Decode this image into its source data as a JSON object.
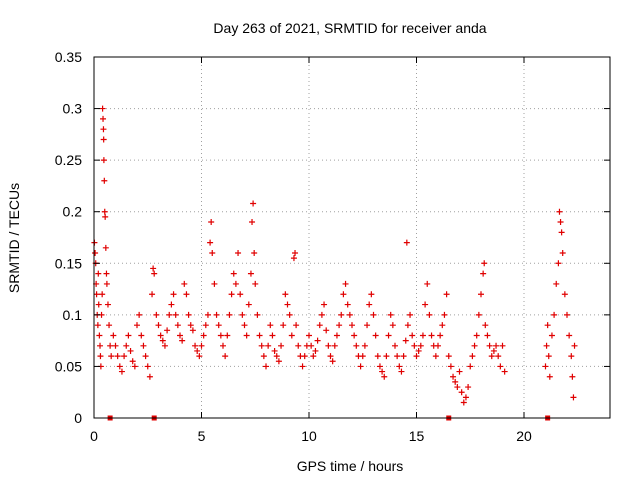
{
  "chart_data": {
    "type": "scatter",
    "title": "Day 263 of 2021, SRMTID for receiver anda",
    "xlabel": "GPS time / hours",
    "ylabel": "SRMTID / TECUs",
    "xlim": [
      0,
      24
    ],
    "ylim": [
      0,
      0.35
    ],
    "x_ticks": [
      0,
      5,
      10,
      15,
      20
    ],
    "y_ticks": [
      0,
      0.05,
      0.1,
      0.15,
      0.2,
      0.25,
      0.3,
      0.35
    ],
    "x_tick_labels": [
      "0",
      "5",
      "10",
      "15",
      "20"
    ],
    "y_tick_labels": [
      "0",
      "0.05",
      "0.1",
      "0.15",
      "0.2",
      "0.25",
      "0.3",
      "0.35"
    ],
    "grid": true,
    "marker": "+",
    "series_color": "#e00000",
    "data_gap_markers_x": [
      0.75,
      2.8,
      16.5,
      21.1
    ],
    "series": [
      {
        "name": "SRMTID",
        "points": [
          [
            0.02,
            0.17
          ],
          [
            0.05,
            0.16
          ],
          [
            0.08,
            0.15
          ],
          [
            0.1,
            0.13
          ],
          [
            0.12,
            0.12
          ],
          [
            0.15,
            0.1
          ],
          [
            0.18,
            0.09
          ],
          [
            0.2,
            0.14
          ],
          [
            0.22,
            0.11
          ],
          [
            0.25,
            0.08
          ],
          [
            0.28,
            0.07
          ],
          [
            0.3,
            0.06
          ],
          [
            0.32,
            0.05
          ],
          [
            0.35,
            0.1
          ],
          [
            0.38,
            0.12
          ],
          [
            0.4,
            0.3
          ],
          [
            0.42,
            0.29
          ],
          [
            0.44,
            0.28
          ],
          [
            0.45,
            0.27
          ],
          [
            0.46,
            0.25
          ],
          [
            0.48,
            0.23
          ],
          [
            0.5,
            0.2
          ],
          [
            0.52,
            0.195
          ],
          [
            0.55,
            0.165
          ],
          [
            0.58,
            0.14
          ],
          [
            0.6,
            0.13
          ],
          [
            0.65,
            0.11
          ],
          [
            0.7,
            0.09
          ],
          [
            0.75,
            0.07
          ],
          [
            0.8,
            0.06
          ],
          [
            0.9,
            0.08
          ],
          [
            1.0,
            0.07
          ],
          [
            1.1,
            0.06
          ],
          [
            1.2,
            0.05
          ],
          [
            1.3,
            0.045
          ],
          [
            1.4,
            0.06
          ],
          [
            1.5,
            0.07
          ],
          [
            1.6,
            0.08
          ],
          [
            1.7,
            0.065
          ],
          [
            1.8,
            0.055
          ],
          [
            1.9,
            0.05
          ],
          [
            2.0,
            0.09
          ],
          [
            2.1,
            0.1
          ],
          [
            2.2,
            0.08
          ],
          [
            2.3,
            0.07
          ],
          [
            2.4,
            0.06
          ],
          [
            2.5,
            0.05
          ],
          [
            2.6,
            0.04
          ],
          [
            2.7,
            0.12
          ],
          [
            2.75,
            0.145
          ],
          [
            2.8,
            0.14
          ],
          [
            2.9,
            0.1
          ],
          [
            3.0,
            0.09
          ],
          [
            3.1,
            0.08
          ],
          [
            3.2,
            0.075
          ],
          [
            3.3,
            0.07
          ],
          [
            3.4,
            0.085
          ],
          [
            3.5,
            0.1
          ],
          [
            3.6,
            0.11
          ],
          [
            3.7,
            0.12
          ],
          [
            3.8,
            0.1
          ],
          [
            3.9,
            0.09
          ],
          [
            4.0,
            0.08
          ],
          [
            4.1,
            0.075
          ],
          [
            4.2,
            0.13
          ],
          [
            4.3,
            0.12
          ],
          [
            4.4,
            0.1
          ],
          [
            4.5,
            0.09
          ],
          [
            4.6,
            0.085
          ],
          [
            4.7,
            0.07
          ],
          [
            4.8,
            0.065
          ],
          [
            4.9,
            0.06
          ],
          [
            5.0,
            0.07
          ],
          [
            5.1,
            0.08
          ],
          [
            5.2,
            0.09
          ],
          [
            5.3,
            0.1
          ],
          [
            5.4,
            0.17
          ],
          [
            5.45,
            0.19
          ],
          [
            5.5,
            0.16
          ],
          [
            5.6,
            0.13
          ],
          [
            5.7,
            0.1
          ],
          [
            5.8,
            0.09
          ],
          [
            5.9,
            0.08
          ],
          [
            6.0,
            0.07
          ],
          [
            6.1,
            0.06
          ],
          [
            6.2,
            0.08
          ],
          [
            6.3,
            0.1
          ],
          [
            6.4,
            0.12
          ],
          [
            6.5,
            0.14
          ],
          [
            6.6,
            0.13
          ],
          [
            6.7,
            0.16
          ],
          [
            6.8,
            0.12
          ],
          [
            6.9,
            0.1
          ],
          [
            7.0,
            0.09
          ],
          [
            7.1,
            0.08
          ],
          [
            7.2,
            0.11
          ],
          [
            7.3,
            0.14
          ],
          [
            7.35,
            0.19
          ],
          [
            7.4,
            0.208
          ],
          [
            7.45,
            0.16
          ],
          [
            7.5,
            0.13
          ],
          [
            7.6,
            0.1
          ],
          [
            7.7,
            0.08
          ],
          [
            7.8,
            0.07
          ],
          [
            7.9,
            0.06
          ],
          [
            8.0,
            0.05
          ],
          [
            8.1,
            0.07
          ],
          [
            8.2,
            0.09
          ],
          [
            8.3,
            0.08
          ],
          [
            8.4,
            0.065
          ],
          [
            8.5,
            0.06
          ],
          [
            8.6,
            0.055
          ],
          [
            8.7,
            0.07
          ],
          [
            8.8,
            0.09
          ],
          [
            8.9,
            0.12
          ],
          [
            9.0,
            0.11
          ],
          [
            9.1,
            0.1
          ],
          [
            9.2,
            0.08
          ],
          [
            9.3,
            0.155
          ],
          [
            9.35,
            0.16
          ],
          [
            9.4,
            0.09
          ],
          [
            9.5,
            0.07
          ],
          [
            9.6,
            0.06
          ],
          [
            9.7,
            0.05
          ],
          [
            9.8,
            0.06
          ],
          [
            9.9,
            0.07
          ],
          [
            10.0,
            0.08
          ],
          [
            10.1,
            0.07
          ],
          [
            10.2,
            0.06
          ],
          [
            10.3,
            0.065
          ],
          [
            10.4,
            0.075
          ],
          [
            10.5,
            0.09
          ],
          [
            10.6,
            0.1
          ],
          [
            10.7,
            0.11
          ],
          [
            10.8,
            0.085
          ],
          [
            10.9,
            0.07
          ],
          [
            11.0,
            0.06
          ],
          [
            11.1,
            0.055
          ],
          [
            11.2,
            0.07
          ],
          [
            11.3,
            0.08
          ],
          [
            11.4,
            0.09
          ],
          [
            11.5,
            0.1
          ],
          [
            11.6,
            0.12
          ],
          [
            11.7,
            0.13
          ],
          [
            11.8,
            0.11
          ],
          [
            11.9,
            0.1
          ],
          [
            12.0,
            0.09
          ],
          [
            12.1,
            0.08
          ],
          [
            12.2,
            0.07
          ],
          [
            12.3,
            0.06
          ],
          [
            12.4,
            0.05
          ],
          [
            12.5,
            0.06
          ],
          [
            12.6,
            0.07
          ],
          [
            12.7,
            0.09
          ],
          [
            12.8,
            0.11
          ],
          [
            12.9,
            0.12
          ],
          [
            13.0,
            0.1
          ],
          [
            13.1,
            0.08
          ],
          [
            13.2,
            0.06
          ],
          [
            13.3,
            0.05
          ],
          [
            13.4,
            0.045
          ],
          [
            13.5,
            0.04
          ],
          [
            13.6,
            0.06
          ],
          [
            13.7,
            0.08
          ],
          [
            13.8,
            0.1
          ],
          [
            13.9,
            0.09
          ],
          [
            14.0,
            0.07
          ],
          [
            14.1,
            0.06
          ],
          [
            14.2,
            0.05
          ],
          [
            14.3,
            0.045
          ],
          [
            14.4,
            0.06
          ],
          [
            14.5,
            0.075
          ],
          [
            14.55,
            0.17
          ],
          [
            14.6,
            0.09
          ],
          [
            14.7,
            0.1
          ],
          [
            14.8,
            0.08
          ],
          [
            14.9,
            0.07
          ],
          [
            15.0,
            0.06
          ],
          [
            15.1,
            0.065
          ],
          [
            15.2,
            0.07
          ],
          [
            15.3,
            0.08
          ],
          [
            15.4,
            0.11
          ],
          [
            15.5,
            0.13
          ],
          [
            15.6,
            0.1
          ],
          [
            15.7,
            0.08
          ],
          [
            15.8,
            0.07
          ],
          [
            15.9,
            0.06
          ],
          [
            16.0,
            0.07
          ],
          [
            16.1,
            0.08
          ],
          [
            16.2,
            0.09
          ],
          [
            16.3,
            0.1
          ],
          [
            16.4,
            0.12
          ],
          [
            16.5,
            0.06
          ],
          [
            16.6,
            0.05
          ],
          [
            16.7,
            0.04
          ],
          [
            16.8,
            0.035
          ],
          [
            16.9,
            0.03
          ],
          [
            17.0,
            0.045
          ],
          [
            17.1,
            0.025
          ],
          [
            17.2,
            0.015
          ],
          [
            17.3,
            0.02
          ],
          [
            17.4,
            0.03
          ],
          [
            17.5,
            0.05
          ],
          [
            17.6,
            0.06
          ],
          [
            17.7,
            0.07
          ],
          [
            17.8,
            0.08
          ],
          [
            17.9,
            0.1
          ],
          [
            18.0,
            0.12
          ],
          [
            18.1,
            0.14
          ],
          [
            18.15,
            0.15
          ],
          [
            18.2,
            0.09
          ],
          [
            18.3,
            0.08
          ],
          [
            18.4,
            0.07
          ],
          [
            18.5,
            0.06
          ],
          [
            18.6,
            0.065
          ],
          [
            18.7,
            0.07
          ],
          [
            18.8,
            0.06
          ],
          [
            18.9,
            0.05
          ],
          [
            19.0,
            0.07
          ],
          [
            19.1,
            0.045
          ],
          [
            21.0,
            0.05
          ],
          [
            21.05,
            0.07
          ],
          [
            21.1,
            0.09
          ],
          [
            21.15,
            0.06
          ],
          [
            21.2,
            0.04
          ],
          [
            21.3,
            0.08
          ],
          [
            21.4,
            0.1
          ],
          [
            21.5,
            0.13
          ],
          [
            21.6,
            0.15
          ],
          [
            21.65,
            0.2
          ],
          [
            21.7,
            0.19
          ],
          [
            21.75,
            0.18
          ],
          [
            21.8,
            0.16
          ],
          [
            21.9,
            0.12
          ],
          [
            22.0,
            0.1
          ],
          [
            22.1,
            0.08
          ],
          [
            22.2,
            0.06
          ],
          [
            22.25,
            0.04
          ],
          [
            22.3,
            0.02
          ],
          [
            22.35,
            0.07
          ]
        ]
      }
    ]
  }
}
